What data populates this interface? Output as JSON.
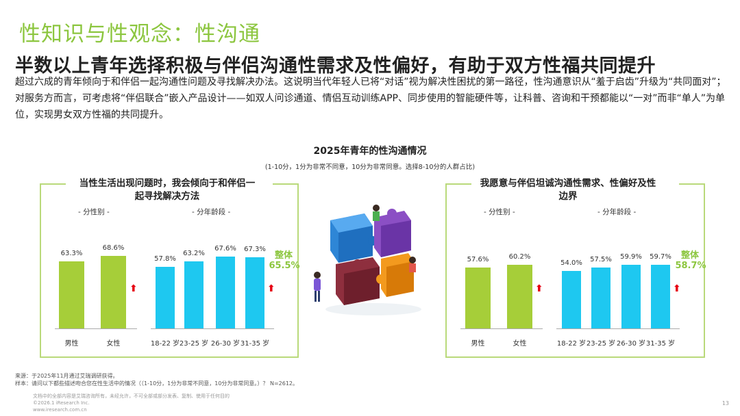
{
  "header": {
    "section_title": "性知识与性观念：性沟通",
    "headline": "半数以上青年选择积极与伴侣沟通性需求及性偏好，有助于双方性福共同提升",
    "intro": "超过六成的青年倾向于和伴侣一起沟通性问题及寻找解决办法。这说明当代年轻人已将“对话”视为解决性困扰的第一路径，性沟通意识从“羞于启齿”升级为“共同面对”；对服务方而言，可考虑将“伴侣联合”嵌入产品设计——如双人问诊通道、情侣互动训练APP、同步使用的智能硬件等，让科普、咨询和干预都能以“一对”而非“单人”为单位，实现男女双方性福的共同提升。"
  },
  "chart_title": "2025年青年的性沟通情况",
  "chart_subtitle": "(1-10分，1分为非常不同意，10分为非常同意。选择8-10分的人群占比)",
  "colors": {
    "gender_bar": "#a6ce39",
    "age_bar": "#1ec8f0",
    "accent": "#8cc63f",
    "arrow": "#e60012"
  },
  "chart_data": [
    {
      "type": "bar",
      "title": "当性生活出现问题时，我会倾向于和伴侣一起寻找解决方法",
      "gender_label": "- 分性别 -",
      "age_label": "- 分年龄段 -",
      "gender": {
        "categories": [
          "男性",
          "女性"
        ],
        "values": [
          63.3,
          68.6
        ],
        "labels": [
          "63.3%",
          "68.6%"
        ]
      },
      "age": {
        "categories": [
          "18-22 岁",
          "23-25 岁",
          "26-30 岁",
          "31-35 岁"
        ],
        "values": [
          57.8,
          63.2,
          67.6,
          67.3
        ],
        "labels": [
          "57.8%",
          "63.2%",
          "67.6%",
          "67.3%"
        ]
      },
      "overall_label": "整体",
      "overall_value": "65.5%",
      "ylim": [
        0,
        100
      ]
    },
    {
      "type": "bar",
      "title": "我愿意与伴侣坦诚沟通性需求、性偏好及性边界",
      "gender_label": "- 分性别 -",
      "age_label": "- 分年龄段 -",
      "gender": {
        "categories": [
          "男性",
          "女性"
        ],
        "values": [
          57.6,
          60.2
        ],
        "labels": [
          "57.6%",
          "60.2%"
        ]
      },
      "age": {
        "categories": [
          "18-22 岁",
          "23-25 岁",
          "26-30 岁",
          "31-35 岁"
        ],
        "values": [
          54.0,
          57.5,
          59.9,
          59.7
        ],
        "labels": [
          "54.0%",
          "57.5%",
          "59.9%",
          "59.7%"
        ]
      },
      "overall_label": "整体",
      "overall_value": "58.7%",
      "ylim": [
        0,
        100
      ]
    }
  ],
  "footer": {
    "source": "来源：于2025年11月通过艾瑞调研获得。",
    "sample": "样本：请问以下都些描述吻合您在性生活中的情况（（1-10分，1分为非常不同意，10分为非常同意。）？ N=2612。",
    "rights": "文档中的全部内容是艾瑞咨询所有，未经允许，不可全部或部分发表、复制、使用于任何目的",
    "copyright": "©2026.1 iResearch Inc.",
    "website": "www.iresearch.com.cn",
    "page": "13"
  }
}
